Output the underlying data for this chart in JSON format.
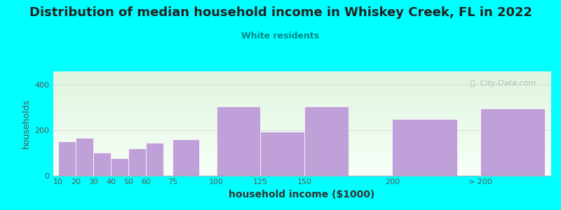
{
  "title": "Distribution of median household income in Whiskey Creek, FL in 2022",
  "subtitle": "White residents",
  "xlabel": "household income ($1000)",
  "ylabel": "households",
  "bar_labels": [
    "10",
    "20",
    "30",
    "40",
    "50",
    "60",
    "75",
    "100",
    "125",
    "150",
    "200",
    "> 200"
  ],
  "bar_values": [
    150,
    165,
    100,
    75,
    120,
    145,
    160,
    305,
    195,
    305,
    250,
    295
  ],
  "bar_left_edges": [
    10,
    20,
    30,
    40,
    50,
    60,
    75,
    100,
    125,
    150,
    200,
    250
  ],
  "bar_widths": [
    10,
    10,
    10,
    10,
    10,
    10,
    15,
    25,
    25,
    25,
    37,
    37
  ],
  "bar_color": "#c0a0d8",
  "background_color": "#00ffff",
  "grad_top": "#dff5df",
  "grad_bottom": "#f8fff8",
  "title_fontsize": 13,
  "subtitle_color": "#008888",
  "yticks": [
    0,
    200,
    400
  ],
  "ylim": [
    0,
    460
  ],
  "xlim_left": 7,
  "xlim_right": 290,
  "watermark": "ⓘ  City-Data.com"
}
